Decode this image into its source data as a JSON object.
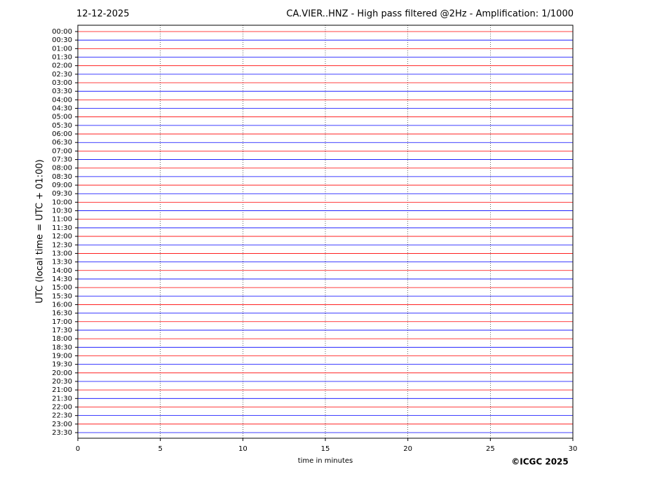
{
  "chart_data": {
    "type": "helicorder",
    "date": "12-12-2025",
    "title": "CA.VIER..HNZ - High pass filtered @2Hz - Amplification: 1/1000",
    "ylabel": "UTC (local time = UTC + 01:00)",
    "xlabel": "time in minutes",
    "categories": [
      "00:00",
      "00:30",
      "01:00",
      "01:30",
      "02:00",
      "02:30",
      "03:00",
      "03:30",
      "04:00",
      "04:30",
      "05:00",
      "05:30",
      "06:00",
      "06:30",
      "07:00",
      "07:30",
      "08:00",
      "08:30",
      "09:00",
      "09:30",
      "10:00",
      "10:30",
      "11:00",
      "11:30",
      "12:00",
      "12:30",
      "13:00",
      "13:30",
      "14:00",
      "14:30",
      "15:00",
      "15:30",
      "16:00",
      "16:30",
      "17:00",
      "17:30",
      "18:00",
      "18:30",
      "19:00",
      "19:30",
      "20:00",
      "20:30",
      "21:00",
      "21:30",
      "22:00",
      "22:30",
      "23:00",
      "23:30"
    ],
    "xlim": [
      0,
      30
    ],
    "xticks": [
      0,
      5,
      10,
      15,
      20,
      25,
      30
    ],
    "grid": true,
    "colors": [
      "#ff0000",
      "#0000ff"
    ]
  },
  "copyright": "©ICGC 2025"
}
